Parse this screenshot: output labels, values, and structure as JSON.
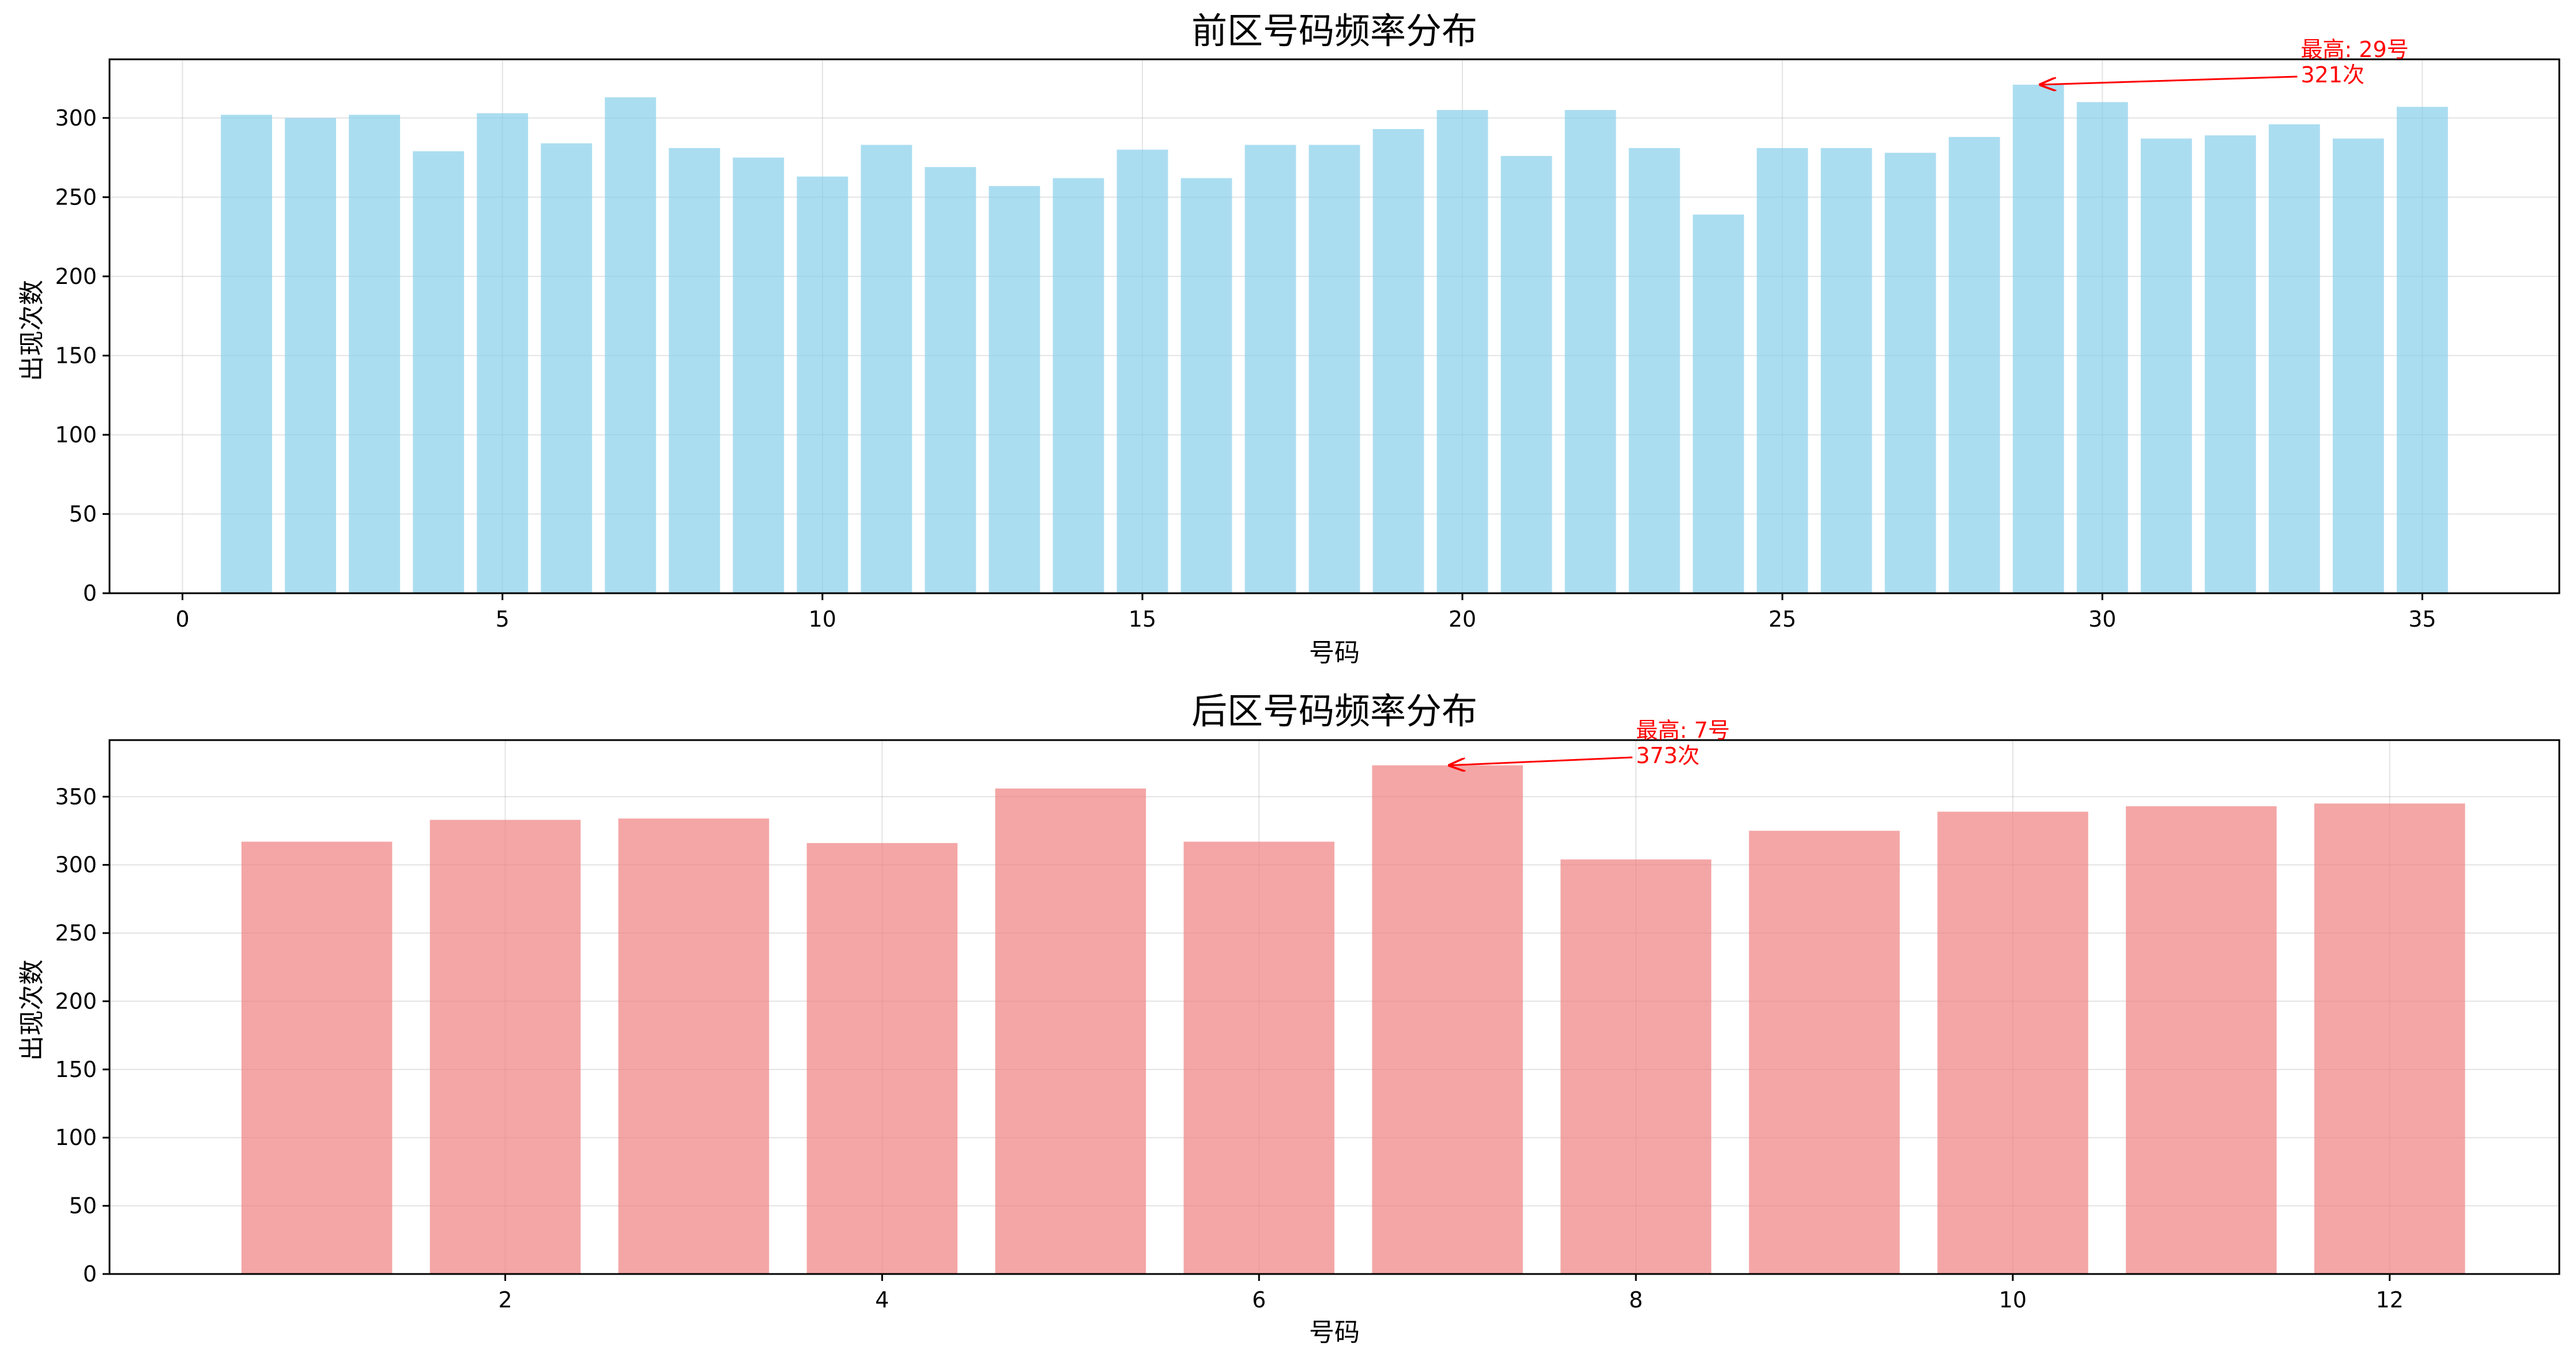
{
  "chart_data": [
    {
      "type": "bar",
      "title": "前区号码频率分布",
      "xlabel": "号码",
      "ylabel": "出现次数",
      "x": [
        1,
        2,
        3,
        4,
        5,
        6,
        7,
        8,
        9,
        10,
        11,
        12,
        13,
        14,
        15,
        16,
        17,
        18,
        19,
        20,
        21,
        22,
        23,
        24,
        25,
        26,
        27,
        28,
        29,
        30,
        31,
        32,
        33,
        34,
        35
      ],
      "values": [
        302,
        300,
        302,
        279,
        303,
        284,
        313,
        281,
        275,
        263,
        283,
        269,
        257,
        262,
        280,
        262,
        283,
        283,
        293,
        305,
        276,
        305,
        281,
        239,
        281,
        281,
        278,
        288,
        321,
        310,
        287,
        289,
        296,
        287,
        307
      ],
      "xlim": [
        -1.14,
        37.14
      ],
      "ylim": [
        0,
        337
      ],
      "xticks": [
        0,
        5,
        10,
        15,
        20,
        25,
        30,
        35
      ],
      "yticks": [
        0,
        50,
        100,
        150,
        200,
        250,
        300
      ],
      "grid": true,
      "color": "#87ceeb",
      "annotation": {
        "target_x": 29,
        "target_y": 321,
        "text_x": 33.1,
        "text_y": 337,
        "line1": "最高: 29号",
        "line2": "321次"
      }
    },
    {
      "type": "bar",
      "title": "后区号码频率分布",
      "xlabel": "号码",
      "ylabel": "出现次数",
      "x": [
        1,
        2,
        3,
        4,
        5,
        6,
        7,
        8,
        9,
        10,
        11,
        12
      ],
      "values": [
        317,
        333,
        334,
        316,
        356,
        317,
        373,
        304,
        325,
        339,
        343,
        345
      ],
      "xlim": [
        -0.1,
        12.9
      ],
      "ylim": [
        0,
        391.5
      ],
      "xticks": [
        2,
        4,
        6,
        8,
        10,
        12
      ],
      "yticks": [
        0,
        50,
        100,
        150,
        200,
        250,
        300,
        350
      ],
      "grid": true,
      "color": "#f08080",
      "annotation": {
        "target_x": 7,
        "target_y": 373,
        "text_x": 8,
        "text_y": 391.5,
        "line1": "最高: 7号",
        "line2": "373次"
      }
    }
  ]
}
